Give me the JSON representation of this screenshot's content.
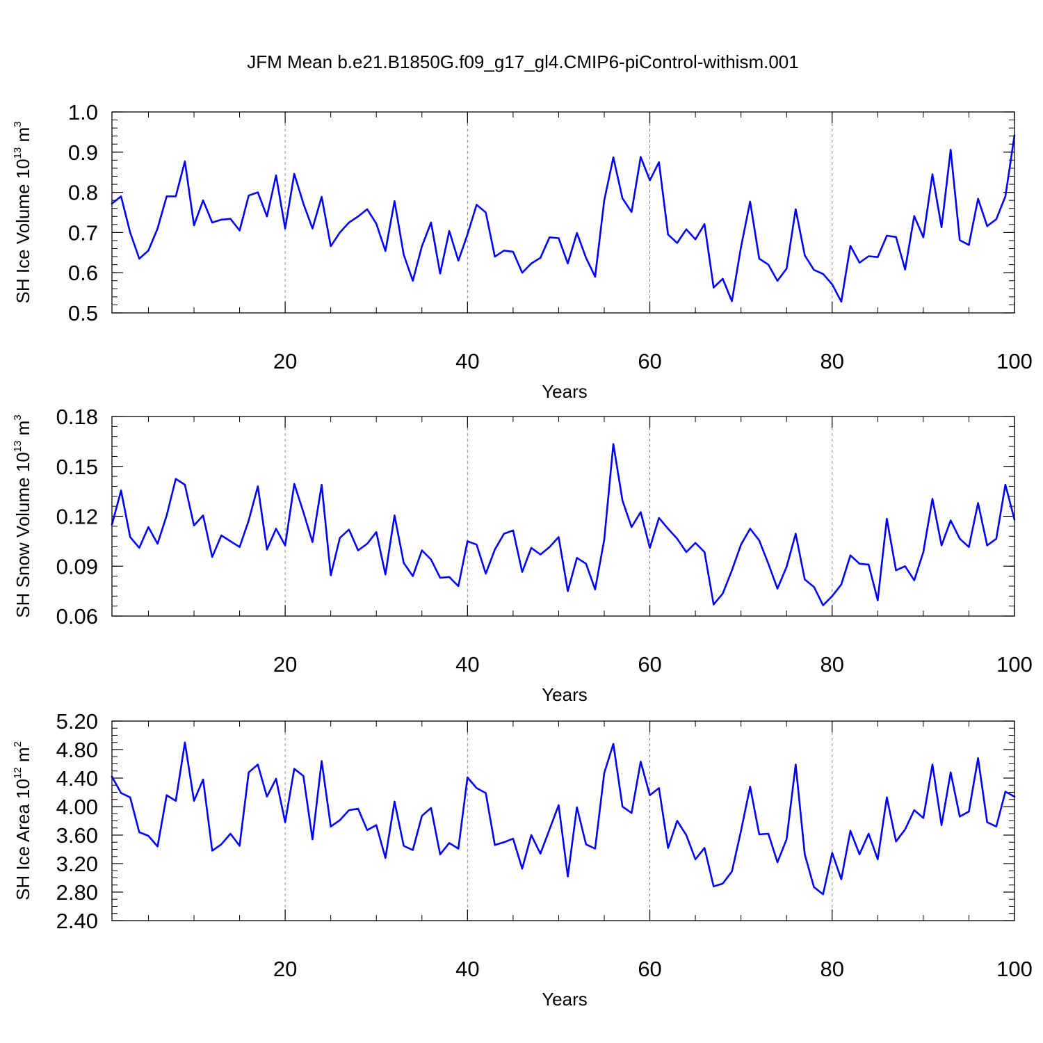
{
  "title": "JFM Mean b.e21.B1850G.f09_g17_gl4.CMIP6-piControl-withism.001",
  "colors": {
    "series": "#0000ff",
    "axes": "#000000",
    "grid": "#808080"
  },
  "chart_data": [
    {
      "type": "line",
      "xlabel": "Years",
      "ylabel": {
        "base": "SH Ice Volume 10",
        "exponent": "13",
        "unit": "m",
        "unit_exponent": "3"
      },
      "xlim": [
        1,
        100
      ],
      "ylim": [
        0.5,
        1.0
      ],
      "xticks": [
        20,
        40,
        60,
        80,
        100
      ],
      "yticks": [
        0.5,
        0.6,
        0.7,
        0.8,
        0.9,
        1.0
      ],
      "ytick_labels": [
        "0.5",
        "0.6",
        "0.7",
        "0.8",
        "0.9",
        "1.0"
      ],
      "y_minor_step": 0.02,
      "vertical_gridlines": [
        20,
        40,
        60,
        80
      ],
      "series": [
        {
          "name": "SH Ice Volume",
          "x_start": 1,
          "values": [
            0.772,
            0.79,
            0.7,
            0.635,
            0.655,
            0.71,
            0.79,
            0.79,
            0.877,
            0.718,
            0.78,
            0.725,
            0.732,
            0.734,
            0.705,
            0.792,
            0.8,
            0.74,
            0.842,
            0.71,
            0.846,
            0.772,
            0.71,
            0.789,
            0.666,
            0.7,
            0.725,
            0.74,
            0.758,
            0.722,
            0.654,
            0.778,
            0.645,
            0.58,
            0.666,
            0.725,
            0.598,
            0.704,
            0.63,
            0.695,
            0.769,
            0.75,
            0.64,
            0.655,
            0.652,
            0.6,
            0.623,
            0.637,
            0.688,
            0.686,
            0.623,
            0.699,
            0.637,
            0.59,
            0.78,
            0.887,
            0.785,
            0.751,
            0.888,
            0.83,
            0.875,
            0.695,
            0.674,
            0.708,
            0.683,
            0.721,
            0.563,
            0.585,
            0.529,
            0.664,
            0.777,
            0.635,
            0.62,
            0.58,
            0.61,
            0.758,
            0.643,
            0.607,
            0.597,
            0.571,
            0.528,
            0.667,
            0.625,
            0.641,
            0.639,
            0.692,
            0.689,
            0.608,
            0.741,
            0.688,
            0.845,
            0.713,
            0.906,
            0.681,
            0.669,
            0.784,
            0.716,
            0.733,
            0.79,
            0.942
          ]
        }
      ]
    },
    {
      "type": "line",
      "xlabel": "Years",
      "ylabel": {
        "base": "SH Snow Volume 10",
        "exponent": "13",
        "unit": "m",
        "unit_exponent": "3"
      },
      "xlim": [
        1,
        100
      ],
      "ylim": [
        0.06,
        0.18
      ],
      "xticks": [
        20,
        40,
        60,
        80,
        100
      ],
      "yticks": [
        0.06,
        0.09,
        0.12,
        0.15,
        0.18
      ],
      "ytick_labels": [
        "0.06",
        "0.09",
        "0.12",
        "0.15",
        "0.18"
      ],
      "y_minor_step": 0.006,
      "vertical_gridlines": [
        20,
        40,
        60,
        80
      ],
      "series": [
        {
          "name": "SH Snow Volume",
          "x_start": 1,
          "values": [
            0.115,
            0.1355,
            0.1075,
            0.101,
            0.1135,
            0.1035,
            0.1205,
            0.1425,
            0.139,
            0.1145,
            0.1205,
            0.0955,
            0.1085,
            0.105,
            0.1015,
            0.1175,
            0.138,
            0.1,
            0.1125,
            0.1025,
            0.1395,
            0.1225,
            0.1045,
            0.139,
            0.0845,
            0.107,
            0.112,
            0.0995,
            0.1035,
            0.1105,
            0.085,
            0.1205,
            0.092,
            0.084,
            0.0995,
            0.094,
            0.083,
            0.0835,
            0.078,
            0.105,
            0.103,
            0.0855,
            0.1,
            0.1095,
            0.1115,
            0.0865,
            0.101,
            0.097,
            0.1015,
            0.1075,
            0.075,
            0.095,
            0.0915,
            0.076,
            0.106,
            0.1635,
            0.1295,
            0.1135,
            0.1225,
            0.101,
            0.119,
            0.1125,
            0.1065,
            0.0985,
            0.104,
            0.0985,
            0.067,
            0.0735,
            0.0875,
            0.103,
            0.1125,
            0.1055,
            0.0915,
            0.0765,
            0.0895,
            0.1095,
            0.082,
            0.0775,
            0.0665,
            0.072,
            0.079,
            0.0965,
            0.0915,
            0.091,
            0.0695,
            0.1185,
            0.0875,
            0.09,
            0.0815,
            0.0985,
            0.1305,
            0.1025,
            0.1175,
            0.1065,
            0.1015,
            0.128,
            0.1025,
            0.1065,
            0.139,
            0.118
          ]
        }
      ]
    },
    {
      "type": "line",
      "xlabel": "Years",
      "ylabel": {
        "base": "SH Ice Area 10",
        "exponent": "12",
        "unit": "m",
        "unit_exponent": "2"
      },
      "xlim": [
        1,
        100
      ],
      "ylim": [
        2.4,
        5.2
      ],
      "xticks": [
        20,
        40,
        60,
        80,
        100
      ],
      "yticks": [
        2.4,
        2.8,
        3.2,
        3.6,
        4.0,
        4.4,
        4.8,
        5.2
      ],
      "ytick_labels": [
        "2.40",
        "2.80",
        "3.20",
        "3.60",
        "4.00",
        "4.40",
        "4.80",
        "5.20"
      ],
      "y_minor_step": 0.1,
      "vertical_gridlines": [
        20,
        40,
        60,
        80
      ],
      "series": [
        {
          "name": "SH Ice Area",
          "x_start": 1,
          "values": [
            4.42,
            4.19,
            4.13,
            3.64,
            3.59,
            3.44,
            4.16,
            4.08,
            4.9,
            4.08,
            4.38,
            3.38,
            3.47,
            3.62,
            3.45,
            4.48,
            4.59,
            4.14,
            4.39,
            3.78,
            4.53,
            4.43,
            3.54,
            4.64,
            3.72,
            3.81,
            3.95,
            3.97,
            3.67,
            3.74,
            3.28,
            4.07,
            3.45,
            3.39,
            3.87,
            3.98,
            3.33,
            3.49,
            3.41,
            4.41,
            4.26,
            4.19,
            3.46,
            3.5,
            3.55,
            3.13,
            3.6,
            3.34,
            3.68,
            4.02,
            3.02,
            3.99,
            3.47,
            3.41,
            4.47,
            4.88,
            4.0,
            3.91,
            4.63,
            4.16,
            4.26,
            3.42,
            3.8,
            3.6,
            3.26,
            3.42,
            2.88,
            2.92,
            3.09,
            3.66,
            4.28,
            3.61,
            3.62,
            3.22,
            3.54,
            4.59,
            3.33,
            2.87,
            2.77,
            3.35,
            2.98,
            3.66,
            3.33,
            3.62,
            3.26,
            4.13,
            3.51,
            3.68,
            3.95,
            3.84,
            4.59,
            3.74,
            4.48,
            3.86,
            3.93,
            4.68,
            3.78,
            3.72,
            4.21,
            4.14
          ]
        }
      ]
    }
  ]
}
